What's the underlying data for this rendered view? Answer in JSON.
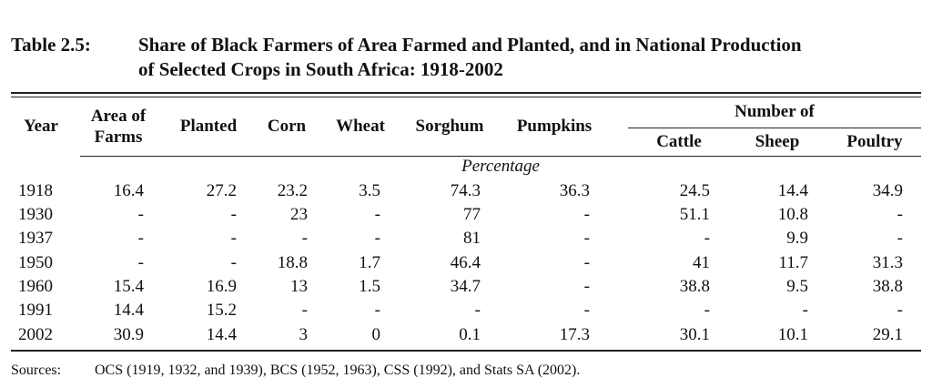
{
  "title": {
    "label": "Table 2.5:",
    "line1": "Share of Black Farmers of Area Farmed and Planted, and in National Production",
    "line2": "of Selected Crops in South Africa: 1918-2002"
  },
  "headers": {
    "year": "Year",
    "area_line1": "Area of",
    "area_line2": "Farms",
    "planted": "Planted",
    "corn": "Corn",
    "wheat": "Wheat",
    "sorghum": "Sorghum",
    "pumpkins": "Pumpkins",
    "number_of": "Number of",
    "cattle": "Cattle",
    "sheep": "Sheep",
    "poultry": "Poultry"
  },
  "unit_label": "Percentage",
  "rows": [
    {
      "year": "1918",
      "area": "16.4",
      "planted": "27.2",
      "corn": "23.2",
      "wheat": "3.5",
      "sorghum": "74.3",
      "pumpkins": "36.3",
      "cattle": "24.5",
      "sheep": "14.4",
      "poultry": "34.9"
    },
    {
      "year": "1930",
      "area": "-",
      "planted": "-",
      "corn": "23",
      "wheat": "-",
      "sorghum": "77",
      "pumpkins": "-",
      "cattle": "51.1",
      "sheep": "10.8",
      "poultry": "-"
    },
    {
      "year": "1937",
      "area": "-",
      "planted": "-",
      "corn": "-",
      "wheat": "-",
      "sorghum": "81",
      "pumpkins": "-",
      "cattle": "-",
      "sheep": "9.9",
      "poultry": "-"
    },
    {
      "year": "1950",
      "area": "-",
      "planted": "-",
      "corn": "18.8",
      "wheat": "1.7",
      "sorghum": "46.4",
      "pumpkins": "-",
      "cattle": "41",
      "sheep": "11.7",
      "poultry": "31.3"
    },
    {
      "year": "1960",
      "area": "15.4",
      "planted": "16.9",
      "corn": "13",
      "wheat": "1.5",
      "sorghum": "34.7",
      "pumpkins": "-",
      "cattle": "38.8",
      "sheep": "9.5",
      "poultry": "38.8"
    },
    {
      "year": "1991",
      "area": "14.4",
      "planted": "15.2",
      "corn": "-",
      "wheat": "-",
      "sorghum": "-",
      "pumpkins": "-",
      "cattle": "-",
      "sheep": "-",
      "poultry": "-"
    },
    {
      "year": "2002",
      "area": "30.9",
      "planted": "14.4",
      "corn": "3",
      "wheat": "0",
      "sorghum": "0.1",
      "pumpkins": "17.3",
      "cattle": "30.1",
      "sheep": "10.1",
      "poultry": "29.1"
    }
  ],
  "sources": {
    "label": "Sources:",
    "text": "OCS (1919, 1932, and 1939), BCS (1952, 1963), CSS (1992), and Stats SA (2002)."
  }
}
